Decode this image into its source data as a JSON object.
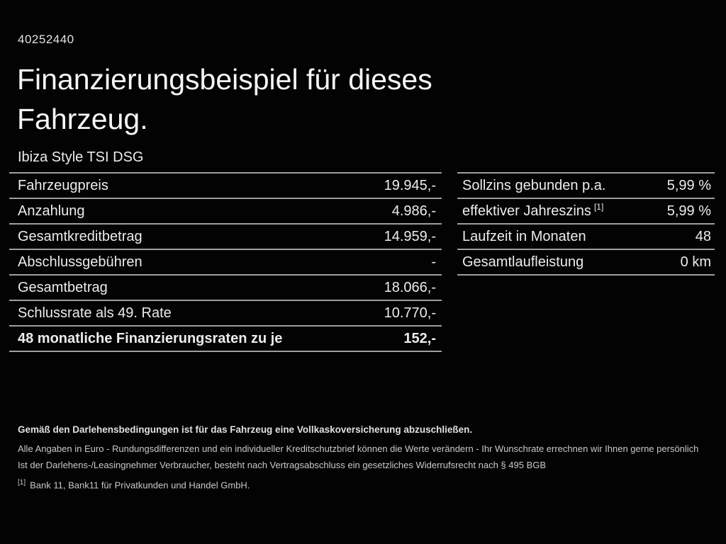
{
  "page": {
    "background": "#030303",
    "text_color": "#ededed",
    "border_color": "#9e9e9e"
  },
  "header": {
    "vehicle_id": "40252440",
    "title_line1": "Finanzierungsbeispiel für dieses",
    "title_line2": "Fahrzeug.",
    "vehicle_model": "Ibiza Style TSI DSG"
  },
  "financing_table": {
    "rows": [
      {
        "label": "Fahrzeugpreis",
        "value": "19.945,-"
      },
      {
        "label": "Anzahlung",
        "value": "4.986,-"
      },
      {
        "label": "Gesamtkreditbetrag",
        "value": "14.959,-"
      },
      {
        "label": "Abschlussgebühren",
        "value": "-"
      },
      {
        "label": "Gesamtbetrag",
        "value": "18.066,-"
      },
      {
        "label": "Schlussrate als 49. Rate",
        "value": "10.770,-"
      },
      {
        "label": "48 monatliche Finanzierungsraten zu je",
        "value": "152,-"
      }
    ]
  },
  "conditions_table": {
    "rows": [
      {
        "label": "Sollzins gebunden p.a.",
        "sup": "",
        "value": "5,99 %"
      },
      {
        "label": "effektiver Jahreszins",
        "sup": "[1]",
        "value": "5,99 %"
      },
      {
        "label": "Laufzeit in Monaten",
        "sup": "",
        "value": "48"
      },
      {
        "label": "Gesamtlaufleistung",
        "sup": "",
        "value": "0 km"
      }
    ]
  },
  "footer": {
    "line_bold": "Gemäß den Darlehensbedingungen ist für das Fahrzeug eine Vollkaskoversicherung abzuschließen.",
    "line2": "Alle Angaben in Euro - Rundungsdifferenzen und ein individueller Kreditschutzbrief können die Werte verändern - Ihr Wunschrate errechnen wir Ihnen gerne persönlich",
    "line3": "Ist der Darlehens-/Leasingnehmer Verbraucher, besteht nach Vertragsabschluss ein gesetzliches Widerrufsrecht nach § 495 BGB",
    "footnote_marker": "[1]",
    "footnote_text": "Bank 11, Bank11 für Privatkunden und Handel GmbH."
  }
}
